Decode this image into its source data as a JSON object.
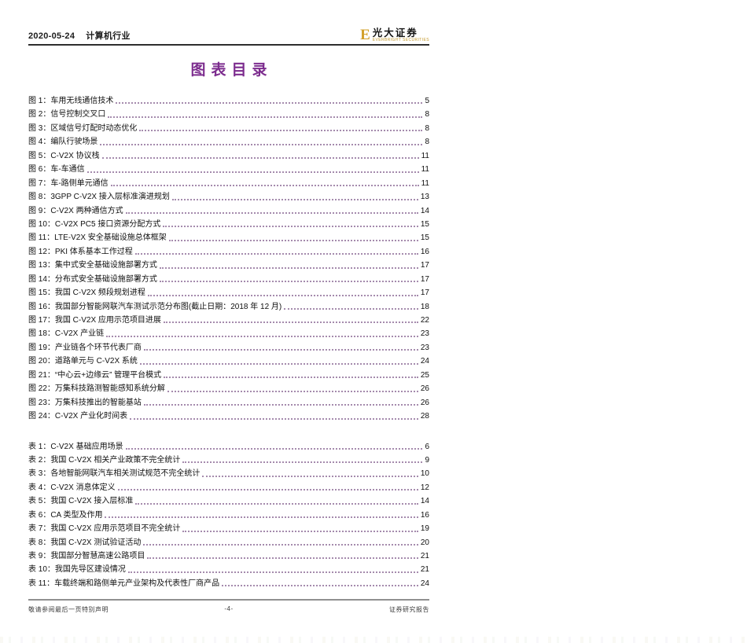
{
  "header": {
    "date": "2020-05-24",
    "industry": "计算机行业",
    "logo": {
      "icon_letter": "E",
      "brand": "光大证券",
      "subtext": "EVERBRIGHT SECURITIES",
      "gold": "#D3A029"
    }
  },
  "title": "图表目录",
  "colors": {
    "title_purple": "#7C2C8E",
    "leader_dots": "#a58bad",
    "header_rule": "#2e2e2e",
    "footer_rule": "#909090"
  },
  "figures": [
    {
      "label": "图 1：车用无线通信技术",
      "page": "5"
    },
    {
      "label": "图 2：信号控制交叉口",
      "page": "8"
    },
    {
      "label": "图 3：区域信号灯配时动态优化",
      "page": "8"
    },
    {
      "label": "图 4：编队行驶场景",
      "page": "8"
    },
    {
      "label": "图 5：C-V2X 协议栈",
      "page": "11"
    },
    {
      "label": "图 6：车-车通信",
      "page": "11"
    },
    {
      "label": "图 7：车-路侧单元通信",
      "page": "11"
    },
    {
      "label": "图 8：3GPP C-V2X 接入层标准演进规划",
      "page": "13"
    },
    {
      "label": "图 9：C-V2X 两种通信方式",
      "page": "14"
    },
    {
      "label": "图 10：C-V2X PC5 接口资源分配方式",
      "page": "15"
    },
    {
      "label": "图 11：LTE-V2X 安全基础设施总体框架",
      "page": "15"
    },
    {
      "label": "图 12：PKI 体系基本工作过程",
      "page": "16"
    },
    {
      "label": "图 13：集中式安全基础设施部署方式",
      "page": "17"
    },
    {
      "label": "图 14：分布式安全基础设施部署方式",
      "page": "17"
    },
    {
      "label": "图 15：我国 C-V2X 频段规划进程",
      "page": "17"
    },
    {
      "label": "图 16：我国部分智能网联汽车测试示范分布图(截止日期：2018 年 12 月)",
      "page": "18"
    },
    {
      "label": "图 17：我国 C-V2X 应用示范项目进展",
      "page": "22"
    },
    {
      "label": "图 18：C-V2X 产业链",
      "page": "23"
    },
    {
      "label": "图 19：产业链各个环节代表厂商",
      "page": "23"
    },
    {
      "label": "图 20：道路单元与 C-V2X 系统",
      "page": "24"
    },
    {
      "label": "图 21：“中心云+边缘云” 管理平台模式",
      "page": "25"
    },
    {
      "label": "图 22：万集科技路测智能感知系统分解",
      "page": "26"
    },
    {
      "label": "图 23：万集科技推出的智能基站",
      "page": "26"
    },
    {
      "label": "图 24：C-V2X 产业化时间表",
      "page": "28"
    }
  ],
  "tables": [
    {
      "label": "表 1：C-V2X 基础应用场景",
      "page": "6"
    },
    {
      "label": "表 2：我国 C-V2X 相关产业政策不完全统计",
      "page": "9"
    },
    {
      "label": "表 3：各地智能网联汽车相关测试规范不完全统计",
      "page": "10"
    },
    {
      "label": "表 4：C-V2X 消息体定义",
      "page": "12"
    },
    {
      "label": "表 5：我国 C-V2X 接入层标准",
      "page": "14"
    },
    {
      "label": "表 6：CA 类型及作用",
      "page": "16"
    },
    {
      "label": "表 7：我国 C-V2X 应用示范项目不完全统计",
      "page": "19"
    },
    {
      "label": "表 8：我国 C-V2X 测试验证活动",
      "page": "20"
    },
    {
      "label": "表 9：我国部分智慧高速公路项目",
      "page": "21"
    },
    {
      "label": "表 10：我国先导区建设情况",
      "page": "21"
    },
    {
      "label": "表 11：车载终端和路侧单元产业架构及代表性厂商产品",
      "page": "24"
    }
  ],
  "footer": {
    "left": "敬请参阅最后一页特别声明",
    "center": "-4-",
    "right": "证券研究报告"
  }
}
